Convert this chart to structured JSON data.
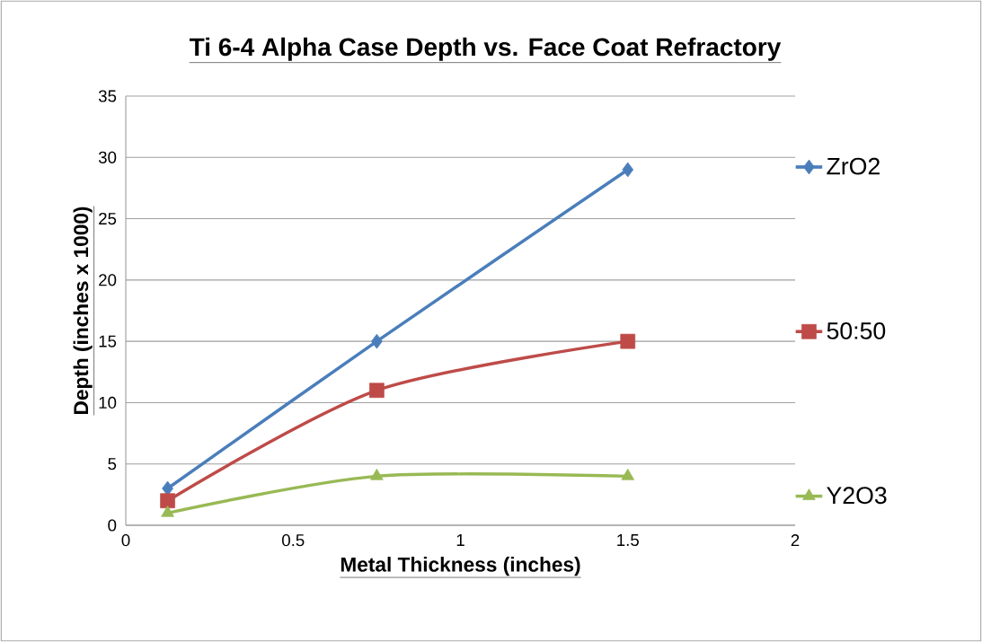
{
  "chart_data": {
    "type": "line",
    "title": "Ti 6-4   Alpha Case Depth vs. Face Coat Refractory",
    "xlabel": "Metal Thickness  (inches)",
    "ylabel": "Depth   (inches x 1000)",
    "x": [
      0.125,
      0.75,
      1.5
    ],
    "series": [
      {
        "name": "ZrO2",
        "color": "#4a7ebb",
        "marker": "diamond",
        "values": [
          3,
          15,
          29
        ]
      },
      {
        "name": "50:50",
        "color": "#be4b48",
        "marker": "square",
        "values": [
          2,
          11,
          15
        ]
      },
      {
        "name": "Y2O3",
        "color": "#98b954",
        "marker": "triangle",
        "values": [
          1,
          4,
          4
        ]
      }
    ],
    "xlim": [
      0,
      2
    ],
    "xticks": [
      0,
      0.5,
      1,
      1.5,
      2
    ],
    "ylim": [
      0,
      35
    ],
    "yticks": [
      0,
      5,
      10,
      15,
      20,
      25,
      30,
      35
    ],
    "grid": "y",
    "legend": "right"
  }
}
